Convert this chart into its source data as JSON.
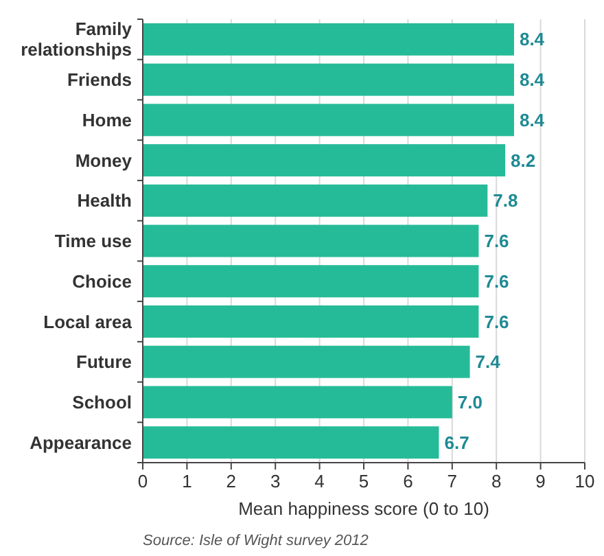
{
  "chart_data": {
    "type": "bar",
    "orientation": "horizontal",
    "categories": [
      "Family relationships",
      "Friends",
      "Home",
      "Money",
      "Health",
      "Time use",
      "Choice",
      "Local area",
      "Future",
      "School",
      "Appearance"
    ],
    "values": [
      8.4,
      8.4,
      8.4,
      8.2,
      7.8,
      7.6,
      7.6,
      7.6,
      7.4,
      7.0,
      6.7
    ],
    "value_labels": [
      "8.4",
      "8.4",
      "8.4",
      "8.2",
      "7.8",
      "7.6",
      "7.6",
      "7.6",
      "7.4",
      "7.0",
      "6.7"
    ],
    "color": "#26bb98",
    "xlim": [
      0,
      10
    ],
    "xticks": [
      0,
      1,
      2,
      3,
      4,
      5,
      6,
      7,
      8,
      9,
      10
    ],
    "grid": "x",
    "xlabel": "Mean happiness score (0 to 10)",
    "annotations": [
      "Source: Isle of Wight survey 2012"
    ]
  }
}
